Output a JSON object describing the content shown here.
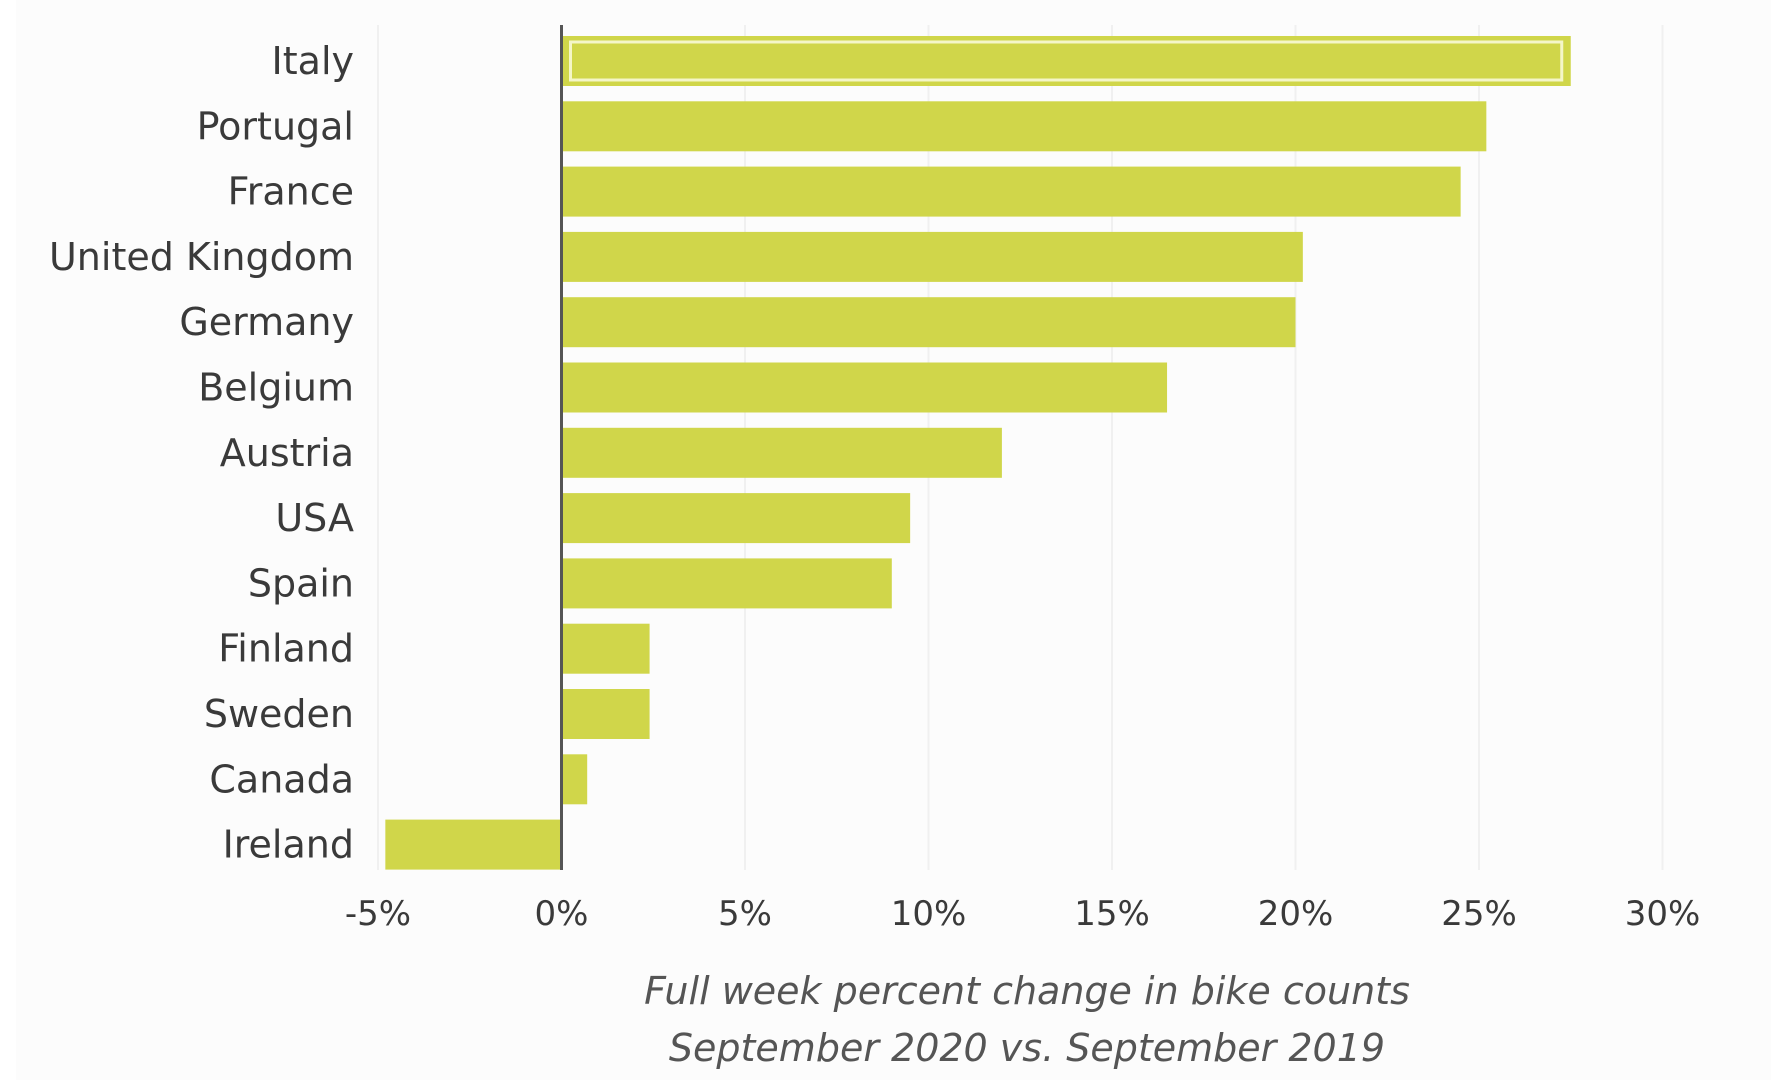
{
  "chart_data": {
    "type": "bar",
    "orientation": "horizontal",
    "categories": [
      "Italy",
      "Portugal",
      "France",
      "United Kingdom",
      "Germany",
      "Belgium",
      "Austria",
      "USA",
      "Spain",
      "Finland",
      "Sweden",
      "Canada",
      "Ireland"
    ],
    "values": [
      27.5,
      25.2,
      24.5,
      20.2,
      20.0,
      16.5,
      12.0,
      9.5,
      9.0,
      2.4,
      2.4,
      0.7,
      -4.8
    ],
    "xlim": [
      -5,
      30
    ],
    "xticks": [
      -5,
      0,
      5,
      10,
      15,
      20,
      25,
      30
    ],
    "tick_labels": [
      "-5%",
      "0%",
      "5%",
      "10%",
      "15%",
      "20%",
      "25%",
      "30%"
    ],
    "xlabel_line1": "Full week percent change in bike counts",
    "xlabel_line2": "September 2020 vs. September 2019",
    "highlighted_category": "Italy",
    "grid": "vertical, subtle",
    "legend": "none",
    "colors": {
      "bar": "#d0d64a",
      "bar_highlight_outline": "#f4f6c8",
      "zero_line": "#555555",
      "grid": "#f0f0f0"
    }
  }
}
